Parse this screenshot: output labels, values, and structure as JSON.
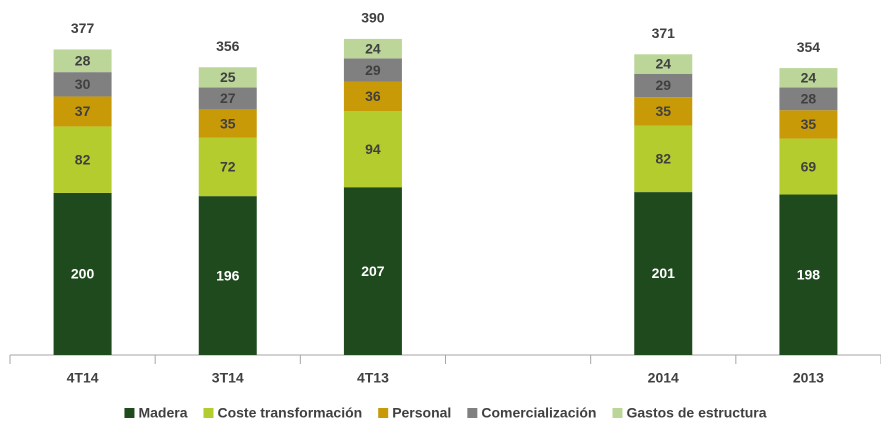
{
  "chart_data": {
    "type": "stacked_bar",
    "categories": [
      "4T14",
      "3T14",
      "4T13",
      null,
      "2014",
      "2013"
    ],
    "series": [
      {
        "name": "Madera",
        "color": "#1e4a1e",
        "values": [
          200,
          196,
          207,
          null,
          201,
          198
        ]
      },
      {
        "name": "Coste transformación",
        "color": "#b5cc2e",
        "values": [
          82,
          72,
          94,
          null,
          82,
          69
        ]
      },
      {
        "name": "Personal",
        "color": "#c89a08",
        "values": [
          37,
          35,
          36,
          null,
          35,
          35
        ]
      },
      {
        "name": "Comercialización",
        "color": "#808080",
        "values": [
          30,
          27,
          29,
          null,
          29,
          28
        ]
      },
      {
        "name": "Gastos de estructura",
        "color": "#bcd69a",
        "values": [
          28,
          25,
          24,
          null,
          24,
          24
        ]
      }
    ],
    "totals": [
      377,
      356,
      390,
      null,
      371,
      354
    ],
    "ylim": [
      0,
      438
    ],
    "legend": "bottom"
  }
}
